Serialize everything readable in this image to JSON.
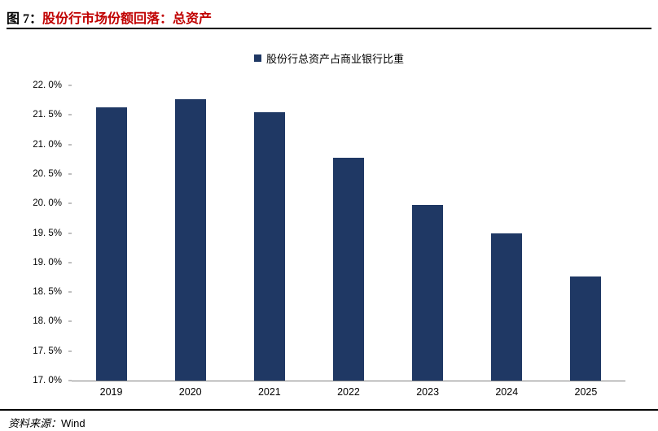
{
  "header": {
    "figure_label": "图 7：",
    "figure_title": "股份行市场份额回落：总资产",
    "title_color": "#c00000"
  },
  "legend": {
    "label": "股份行总资产占商业银行比重",
    "marker_color": "#1f3864"
  },
  "footer": {
    "source_label": "资料来源：",
    "source_value": "Wind"
  },
  "chart_data": {
    "type": "bar",
    "title": "股份行总资产占商业银行比重",
    "categories": [
      "2019",
      "2020",
      "2021",
      "2022",
      "2023",
      "2024",
      "2025"
    ],
    "values": [
      21.63,
      21.77,
      21.54,
      20.78,
      19.97,
      19.5,
      18.76
    ],
    "unit": "%",
    "xlabel": "",
    "ylabel": "",
    "ylim": [
      17.0,
      22.0
    ],
    "ytick_step": 0.5,
    "ytick_labels": [
      "22. 0%",
      "21. 5%",
      "21. 0%",
      "20. 5%",
      "20. 0%",
      "19. 5%",
      "19. 0%",
      "18. 5%",
      "18. 0%",
      "17. 5%",
      "17. 0%"
    ],
    "bar_color": "#1f3864",
    "grid": false,
    "legend_position": "top-center"
  }
}
